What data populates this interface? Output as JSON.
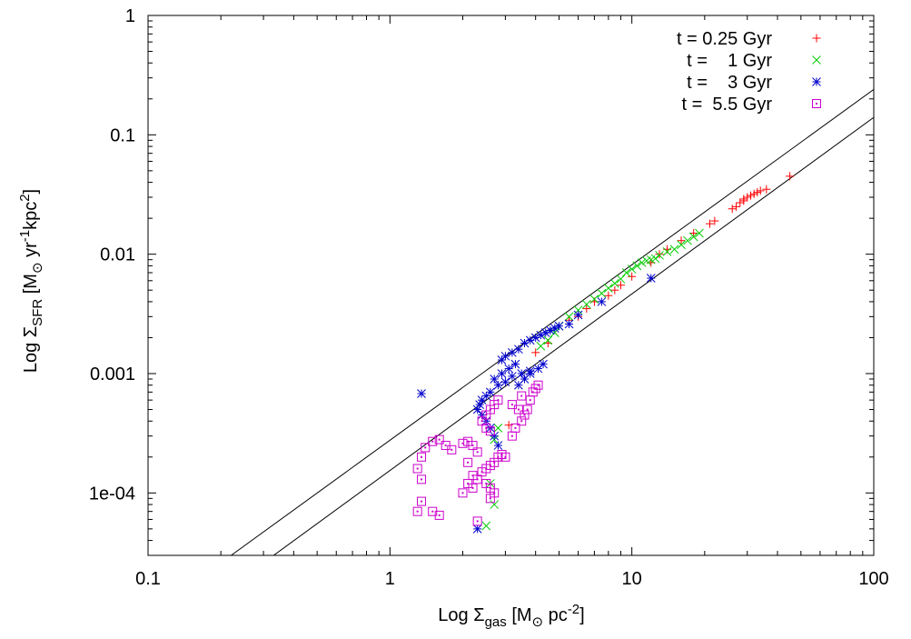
{
  "chart_data": {
    "type": "scatter",
    "title": "",
    "xlabel": {
      "prefix": "Log ",
      "sigma": "Σ",
      "sub": "gas",
      "unit_open": " [M",
      "sun": "⊙",
      "unit_rest": "  pc",
      "sup": "-2",
      "close": "]"
    },
    "ylabel": {
      "prefix": "Log ",
      "sigma": "Σ",
      "sub": "SFR",
      "unit_open": " [M",
      "sun": "⊙",
      "unit_mid": "  yr",
      "sup1": "-1",
      "unit_kpc": "kpc",
      "sup2": "2",
      "close": "]"
    },
    "x_scale": "log",
    "y_scale": "log",
    "xlim": [
      0.1,
      100
    ],
    "ylim": [
      3e-05,
      1
    ],
    "x_ticks": [
      0.1,
      1,
      10,
      100
    ],
    "x_tick_labels": [
      "0.1",
      "1",
      "10",
      "100"
    ],
    "y_ticks": [
      0.0001,
      0.001,
      0.01,
      0.1,
      1
    ],
    "y_tick_labels": [
      "1e-04",
      "0.001",
      "0.01",
      "0.1",
      "1"
    ],
    "legend_position": "top-right",
    "grid": false,
    "reference_lines": [
      {
        "name": "upper-law",
        "x": [
          0.2,
          100
        ],
        "y": [
          2.6e-05,
          0.24
        ]
      },
      {
        "name": "lower-law",
        "x": [
          0.3,
          100
        ],
        "y": [
          2.6e-05,
          0.14
        ]
      }
    ],
    "series": [
      {
        "name": "t = 0.25 Gyr",
        "label": "t = 0.25 Gyr",
        "marker": "plus",
        "color": "#ff0000",
        "points": [
          [
            45,
            0.045
          ],
          [
            36,
            0.035
          ],
          [
            34,
            0.034
          ],
          [
            33,
            0.033
          ],
          [
            32,
            0.032
          ],
          [
            31,
            0.031
          ],
          [
            30,
            0.03
          ],
          [
            29,
            0.029
          ],
          [
            29,
            0.028
          ],
          [
            28,
            0.027
          ],
          [
            27,
            0.025
          ],
          [
            26,
            0.024
          ],
          [
            22,
            0.019
          ],
          [
            21,
            0.018
          ],
          [
            18,
            0.015
          ],
          [
            16,
            0.013
          ],
          [
            14,
            0.011
          ],
          [
            13,
            0.01
          ],
          [
            12,
            0.0085
          ],
          [
            10,
            0.0065
          ],
          [
            9,
            0.0055
          ],
          [
            8.5,
            0.005
          ],
          [
            8,
            0.0045
          ],
          [
            7,
            0.004
          ],
          [
            6.5,
            0.0035
          ],
          [
            6,
            0.003
          ],
          [
            5.5,
            0.0028
          ],
          [
            4.5,
            0.0018
          ],
          [
            4,
            0.0015
          ],
          [
            3.1,
            0.00037
          ]
        ]
      },
      {
        "name": "t = 1 Gyr",
        "label": "t =    1 Gyr",
        "marker": "cross",
        "color": "#00cc00",
        "points": [
          [
            19,
            0.015
          ],
          [
            18,
            0.014
          ],
          [
            17,
            0.013
          ],
          [
            16,
            0.012
          ],
          [
            15,
            0.011
          ],
          [
            14,
            0.0105
          ],
          [
            13,
            0.0098
          ],
          [
            12.5,
            0.0092
          ],
          [
            12,
            0.009
          ],
          [
            11.5,
            0.0088
          ],
          [
            11,
            0.0085
          ],
          [
            10.5,
            0.008
          ],
          [
            10,
            0.0075
          ],
          [
            9.5,
            0.007
          ],
          [
            9,
            0.0062
          ],
          [
            8.5,
            0.0057
          ],
          [
            8,
            0.0052
          ],
          [
            7.5,
            0.0047
          ],
          [
            7,
            0.0042
          ],
          [
            6.5,
            0.0038
          ],
          [
            6,
            0.0034
          ],
          [
            5.5,
            0.003
          ],
          [
            5,
            0.0025
          ],
          [
            4.8,
            0.0022
          ],
          [
            4.5,
            0.0019
          ],
          [
            4.2,
            0.0017
          ],
          [
            2.8,
            0.00035
          ],
          [
            2.7,
            0.00028
          ],
          [
            2.6,
            0.00012
          ],
          [
            2.7,
            8e-05
          ],
          [
            2.5,
            5.3e-05
          ]
        ]
      },
      {
        "name": "t = 3 Gyr",
        "label": "t =    3 Gyr",
        "marker": "star",
        "color": "#0000cc",
        "points": [
          [
            12,
            0.0063
          ],
          [
            7.5,
            0.004
          ],
          [
            6,
            0.0031
          ],
          [
            5.5,
            0.0026
          ],
          [
            5,
            0.0025
          ],
          [
            4.8,
            0.0024
          ],
          [
            4.6,
            0.0023
          ],
          [
            4.4,
            0.0022
          ],
          [
            4.2,
            0.0021
          ],
          [
            4,
            0.002
          ],
          [
            3.8,
            0.0019
          ],
          [
            3.6,
            0.0018
          ],
          [
            3.4,
            0.0016
          ],
          [
            3.2,
            0.0015
          ],
          [
            3,
            0.0014
          ],
          [
            2.9,
            0.0013
          ],
          [
            4.3,
            0.0012
          ],
          [
            4.1,
            0.0011
          ],
          [
            3.8,
            0.001
          ],
          [
            3.5,
            0.001
          ],
          [
            3.2,
            0.00095
          ],
          [
            3,
            0.00085
          ],
          [
            2.8,
            0.0008
          ],
          [
            2.6,
            0.0007
          ],
          [
            2.5,
            0.00065
          ],
          [
            2.4,
            0.0006
          ],
          [
            2.35,
            0.00055
          ],
          [
            2.3,
            0.0005
          ],
          [
            2.4,
            0.00045
          ],
          [
            2.5,
            0.0004
          ],
          [
            2.6,
            0.00035
          ],
          [
            2.7,
            0.0003
          ],
          [
            2.8,
            0.00025
          ],
          [
            3.8,
            0.00105
          ],
          [
            3.6,
            0.0009
          ],
          [
            3.4,
            0.0008
          ],
          [
            3.3,
            0.0012
          ],
          [
            3.1,
            0.0011
          ],
          [
            2.9,
            0.001
          ],
          [
            2.7,
            0.0009
          ],
          [
            1.35,
            0.00068
          ],
          [
            2.3,
            5e-05
          ]
        ]
      },
      {
        "name": "t = 5.5 Gyr",
        "label": "t =  5.5 Gyr",
        "marker": "square",
        "color": "#cc00cc",
        "points": [
          [
            1.3,
            7e-05
          ],
          [
            1.35,
            8.5e-05
          ],
          [
            1.5,
            7e-05
          ],
          [
            1.6,
            6.5e-05
          ],
          [
            1.35,
            0.00013
          ],
          [
            1.3,
            0.00016
          ],
          [
            1.35,
            0.0002
          ],
          [
            1.4,
            0.00024
          ],
          [
            1.5,
            0.00027
          ],
          [
            1.6,
            0.00028
          ],
          [
            1.7,
            0.00025
          ],
          [
            1.8,
            0.00023
          ],
          [
            2.0,
            0.00026
          ],
          [
            2.1,
            0.00027
          ],
          [
            2.2,
            0.00025
          ],
          [
            2.3,
            0.00022
          ],
          [
            2.1,
            0.00018
          ],
          [
            2.2,
            0.00014
          ],
          [
            2.1,
            0.00012
          ],
          [
            2.0,
            0.0001
          ],
          [
            2.2,
            0.00011
          ],
          [
            2.3,
            0.00013
          ],
          [
            2.4,
            0.00015
          ],
          [
            2.5,
            0.00016
          ],
          [
            2.6,
            0.00017
          ],
          [
            2.7,
            0.00018
          ],
          [
            2.8,
            0.0002
          ],
          [
            2.9,
            0.00021
          ],
          [
            3.0,
            0.0002
          ],
          [
            2.5,
            0.00012
          ],
          [
            2.6,
            0.00011
          ],
          [
            2.7,
            0.0001
          ],
          [
            2.6,
            9e-05
          ],
          [
            2.3,
            5.8e-05
          ],
          [
            2.5,
            0.00035
          ],
          [
            2.6,
            0.00033
          ],
          [
            2.4,
            0.0004
          ],
          [
            2.5,
            0.00045
          ],
          [
            2.6,
            0.0005
          ],
          [
            2.7,
            0.00055
          ],
          [
            2.8,
            0.0006
          ],
          [
            3.2,
            0.0003
          ],
          [
            3.3,
            0.00035
          ],
          [
            3.5,
            0.0004
          ],
          [
            3.6,
            0.00045
          ],
          [
            3.7,
            0.0005
          ],
          [
            3.8,
            0.0006
          ],
          [
            3.9,
            0.0007
          ],
          [
            4.0,
            0.00075
          ],
          [
            4.1,
            0.0008
          ],
          [
            3.5,
            0.00065
          ],
          [
            3.2,
            0.00055
          ],
          [
            3.4,
            0.0005
          ]
        ]
      }
    ]
  }
}
